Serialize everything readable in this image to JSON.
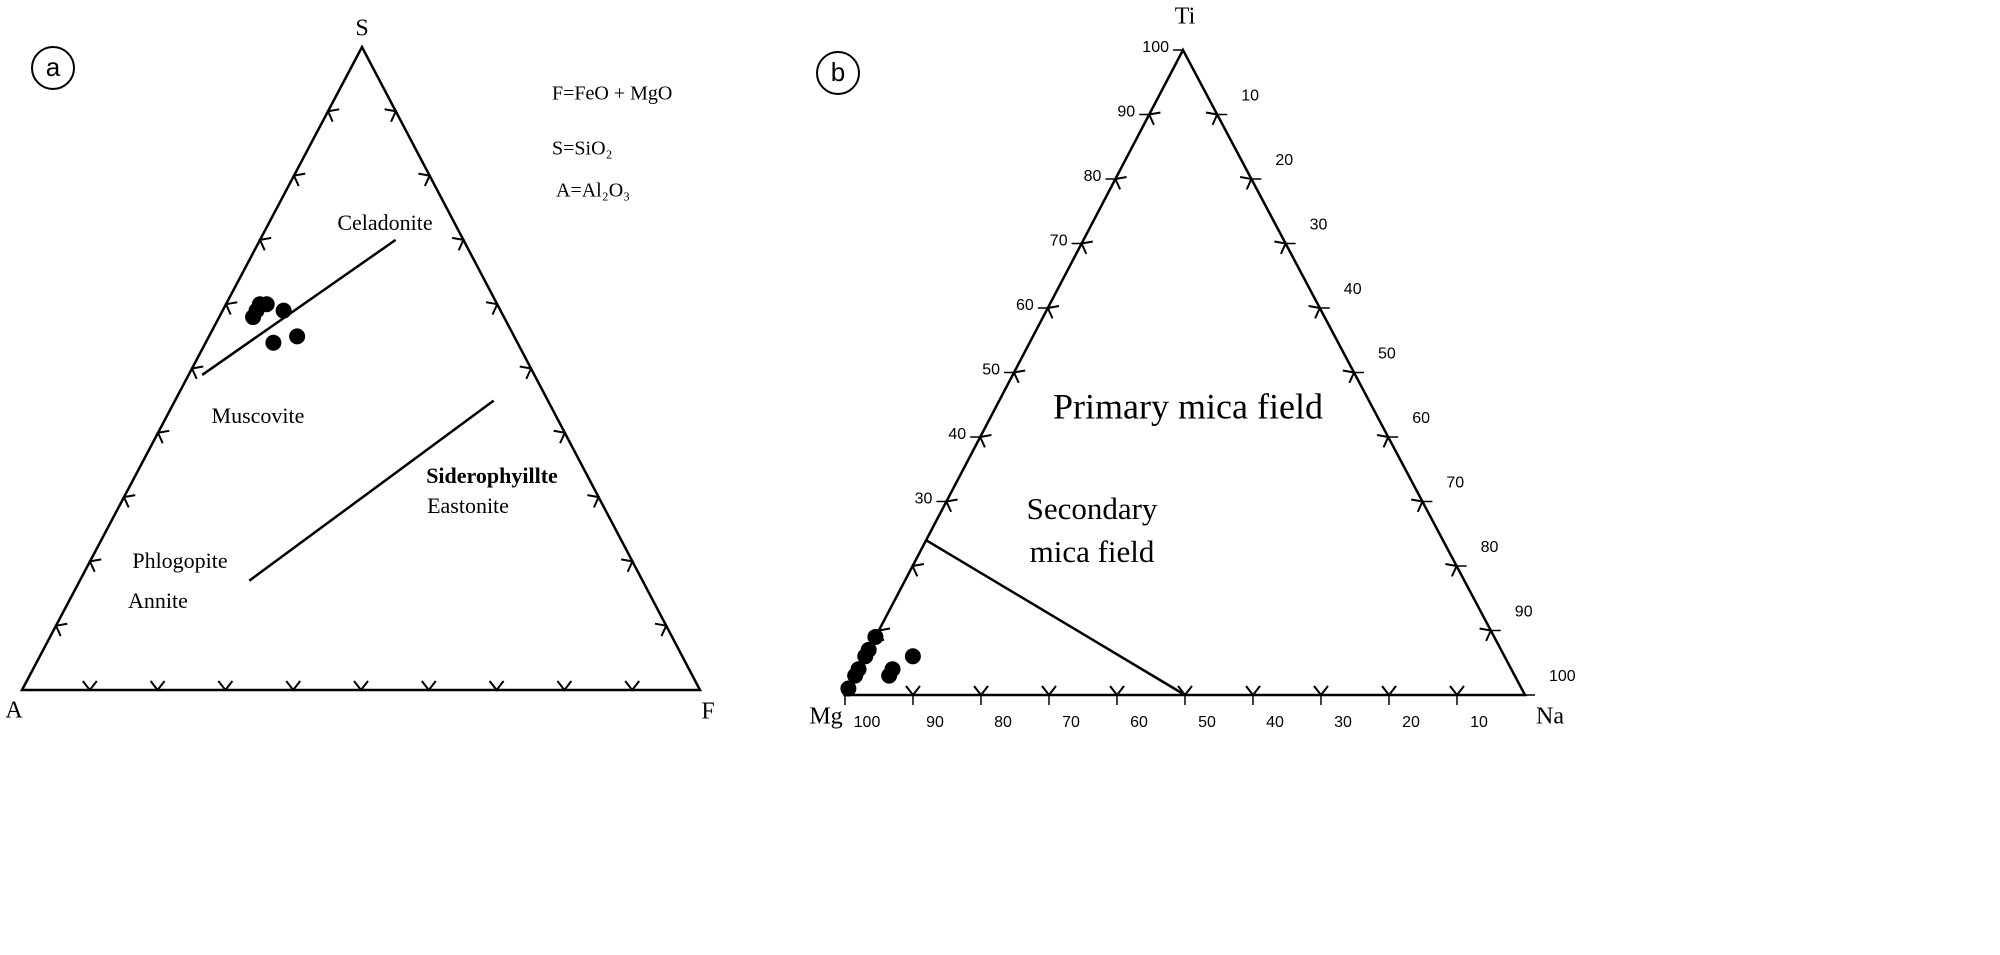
{
  "chart_data": [
    {
      "type": "ternary",
      "panel": "a",
      "components": [
        "S",
        "A",
        "F"
      ],
      "notes": [
        "F=FeO + MgO",
        "S=SiO₂",
        "A=Al₂O₃"
      ],
      "fields": [
        "Celadonite",
        "Muscovite",
        "Siderophyillte",
        "Eastonite",
        "Phlogopite",
        "Annite"
      ],
      "boundaries": [
        [
          [
            49,
            49,
            2
          ],
          [
            70,
            10,
            20
          ]
        ],
        [
          [
            17,
            58,
            25
          ],
          [
            45,
            8,
            47
          ]
        ]
      ],
      "color": "#000000",
      "points": [
        [
          59,
          36,
          5
        ],
        [
          60,
          34,
          6
        ],
        [
          58,
          37,
          5
        ],
        [
          60,
          35,
          5
        ],
        [
          59,
          32,
          9
        ],
        [
          54,
          36,
          10
        ],
        [
          55,
          32,
          13
        ]
      ]
    },
    {
      "type": "ternary",
      "panel": "b",
      "components": [
        "Ti",
        "Mg",
        "Na"
      ],
      "fields": [
        "Primary mica field",
        "Secondary",
        "mica field"
      ],
      "boundaries": [
        [
          [
            24,
            76,
            0
          ],
          [
            0,
            50,
            50
          ]
        ]
      ],
      "ticks": [
        [
          30,
          40,
          50,
          60,
          70,
          80,
          90,
          100
        ],
        [
          100,
          90,
          80,
          70,
          60,
          50,
          40,
          30,
          20,
          10
        ],
        [
          10,
          20,
          30,
          40,
          50,
          60,
          70,
          80,
          90,
          100
        ]
      ],
      "color": "#000000",
      "points": [
        [
          9,
          91,
          0
        ],
        [
          7,
          93,
          0
        ],
        [
          6,
          94,
          0
        ],
        [
          4,
          96,
          0
        ],
        [
          3,
          97,
          0
        ],
        [
          1,
          99,
          0
        ],
        [
          4,
          91,
          5
        ],
        [
          3,
          92,
          5
        ],
        [
          6,
          87,
          7
        ]
      ]
    }
  ]
}
